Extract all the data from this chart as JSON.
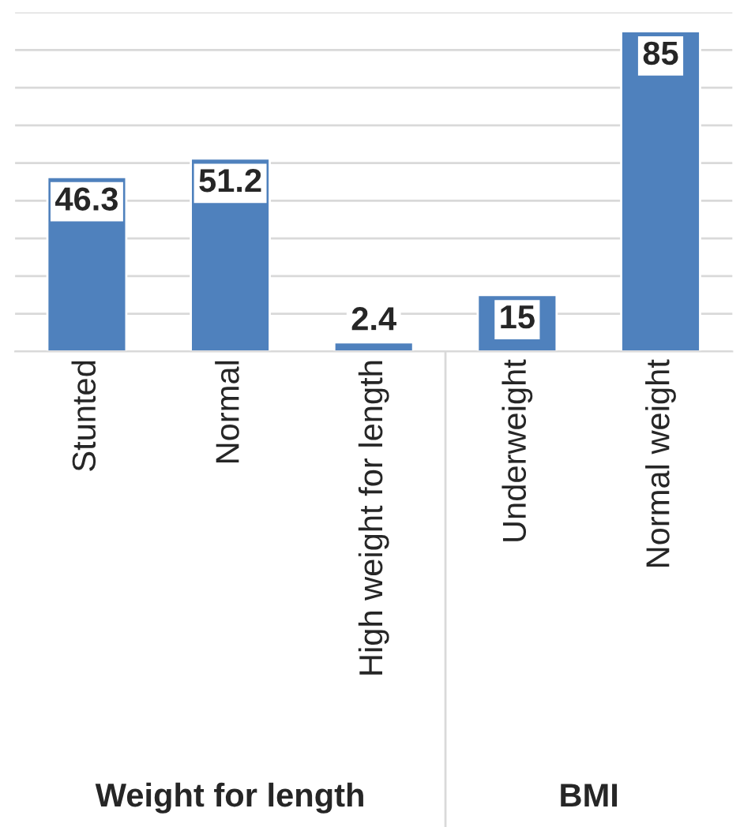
{
  "chart_data": {
    "type": "bar",
    "categories": [
      "Stunted",
      "Normal",
      "High weight for length",
      "Underweight",
      "Normal weight"
    ],
    "values": [
      46.3,
      51.2,
      2.4,
      15,
      85
    ],
    "color": "#4f81bd",
    "data_labels": true,
    "ylim": [
      0,
      90
    ],
    "yticks": [
      {
        "value": 0,
        "label": null
      },
      {
        "value": 10,
        "label": null
      },
      {
        "value": 20,
        "label": null
      },
      {
        "value": 30,
        "label": null
      },
      {
        "value": 40,
        "label": null
      },
      {
        "value": 50,
        "label": null
      },
      {
        "value": 60,
        "label": null
      },
      {
        "value": 70,
        "label": null
      },
      {
        "value": 80,
        "label": null
      },
      {
        "value": 90,
        "label": null
      }
    ],
    "grid": "y",
    "tick_labels": "x",
    "annotations": [
      "Weight for length",
      "BMI"
    ]
  }
}
